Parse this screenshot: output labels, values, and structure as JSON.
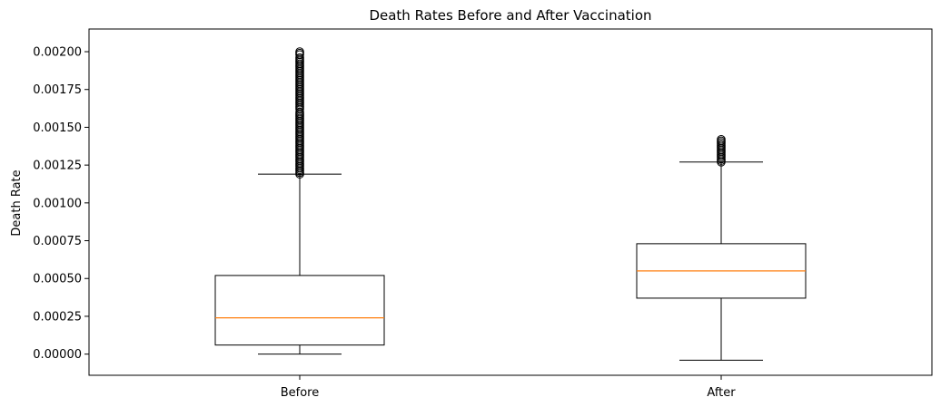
{
  "chart_data": {
    "type": "boxplot",
    "title": "Death Rates Before and After Vaccination",
    "xlabel": "",
    "ylabel": "Death Rate",
    "ylim": [
      -0.00014,
      0.00215
    ],
    "yticks": [
      0,
      0.00025,
      0.0005,
      0.00075,
      0.001,
      0.00125,
      0.0015,
      0.00175,
      0.002
    ],
    "ytick_labels": [
      "0.00000",
      "0.00025",
      "0.00050",
      "0.00075",
      "0.00100",
      "0.00125",
      "0.00150",
      "0.00175",
      "0.00200"
    ],
    "categories": [
      "Before",
      "After"
    ],
    "grid": false,
    "box_color": "#000000",
    "median_color": "#ff7f0e",
    "boxes": [
      {
        "category": "Before",
        "whisker_low": 0.0,
        "q1": 6e-05,
        "median": 0.00024,
        "q3": 0.00052,
        "whisker_high": 0.00119,
        "outliers": [
          0.00119,
          0.0012,
          0.00121,
          0.00122,
          0.00123,
          0.00124,
          0.00125,
          0.00126,
          0.00127,
          0.00128,
          0.00129,
          0.0013,
          0.00131,
          0.00132,
          0.00133,
          0.00134,
          0.00135,
          0.00136,
          0.00137,
          0.00138,
          0.00139,
          0.0014,
          0.00141,
          0.00142,
          0.00143,
          0.00144,
          0.00145,
          0.00146,
          0.00147,
          0.00148,
          0.00149,
          0.0015,
          0.00151,
          0.00152,
          0.00153,
          0.00154,
          0.00155,
          0.00156,
          0.00157,
          0.00158,
          0.00159,
          0.0016,
          0.00162,
          0.00163,
          0.00164,
          0.00165,
          0.00166,
          0.00167,
          0.00168,
          0.00169,
          0.0017,
          0.00171,
          0.00172,
          0.00173,
          0.00174,
          0.00175,
          0.00176,
          0.00177,
          0.00178,
          0.00179,
          0.0018,
          0.00181,
          0.00182,
          0.00183,
          0.00184,
          0.00185,
          0.00186,
          0.00187,
          0.00188,
          0.00189,
          0.0019,
          0.00191,
          0.00192,
          0.00193,
          0.00194,
          0.00195,
          0.00196,
          0.00198,
          0.00199,
          0.002
        ]
      },
      {
        "category": "After",
        "whisker_low": -4e-05,
        "q1": 0.00037,
        "median": 0.00055,
        "q3": 0.00073,
        "whisker_high": 0.00127,
        "outliers": [
          0.00127,
          0.00128,
          0.00129,
          0.0013,
          0.00131,
          0.00132,
          0.00133,
          0.00134,
          0.00135,
          0.00136,
          0.00137,
          0.00138,
          0.00139,
          0.0014,
          0.00141,
          0.00142
        ]
      }
    ]
  }
}
